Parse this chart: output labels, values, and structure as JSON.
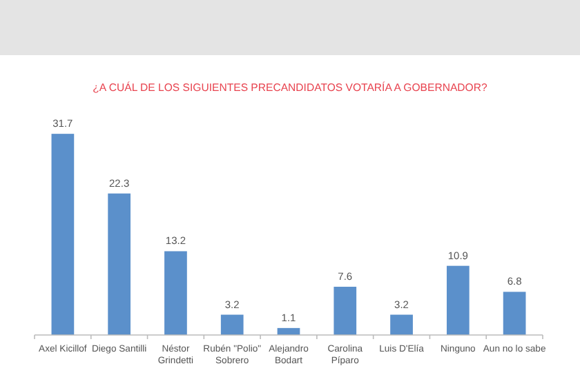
{
  "chart_data": {
    "type": "bar",
    "title": "¿A CUÁL DE LOS SIGUIENTES PRECANDIDATOS VOTARÍA A GOBERNADOR?",
    "categories": [
      "Axel Kicillof",
      "Diego Santilli",
      "Néstor Grindetti",
      "Rubén \"Polio\" Sobrero",
      "Alejandro Bodart",
      "Carolina Píparo",
      "Luis D'Elía",
      "Ninguno",
      "Aun no lo sabe"
    ],
    "values": [
      31.7,
      22.3,
      13.2,
      3.2,
      1.1,
      7.6,
      3.2,
      10.9,
      6.8
    ],
    "color": "#5b90cb",
    "data_labels": true
  }
}
